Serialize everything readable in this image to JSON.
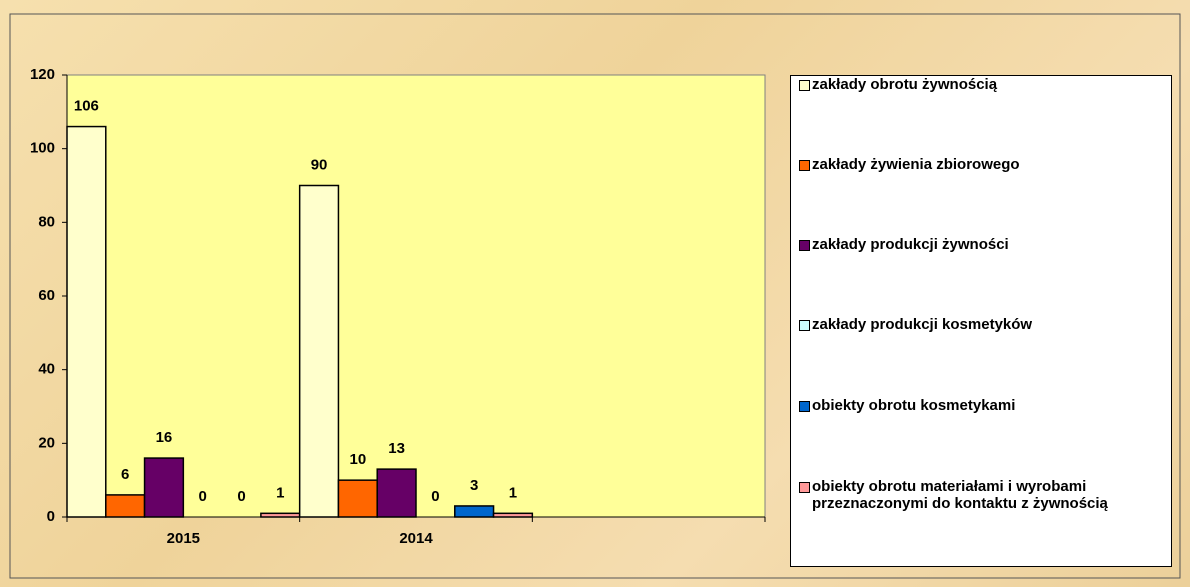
{
  "chart_data": {
    "type": "bar",
    "categories": [
      "2015",
      "2014",
      null
    ],
    "series": [
      {
        "name": "zakłady obrotu żywnością",
        "color": "#ffffcc",
        "values": [
          106,
          90,
          null
        ]
      },
      {
        "name": "zakłady żywienia zbiorowego",
        "color": "#ff6600",
        "values": [
          6,
          10,
          null
        ]
      },
      {
        "name": "zakłady produkcji żywności",
        "color": "#660066",
        "values": [
          16,
          13,
          null
        ]
      },
      {
        "name": "zakłady produkcji kosmetyków",
        "color": "#ccffff",
        "values": [
          0,
          0,
          null
        ]
      },
      {
        "name": "obiekty obrotu kosmetykami",
        "color": "#0066cc",
        "values": [
          0,
          3,
          null
        ]
      },
      {
        "name": "obiekty obrotu materiałami i wyrobami przeznaczonymi do kontaktu z żywnością",
        "color": "#ff9999",
        "values": [
          1,
          1,
          null
        ]
      }
    ],
    "ylim": [
      0,
      120
    ],
    "yticks": [
      0,
      20,
      40,
      60,
      80,
      100,
      120
    ],
    "plot_background": "#ffff99",
    "legend": "right"
  }
}
